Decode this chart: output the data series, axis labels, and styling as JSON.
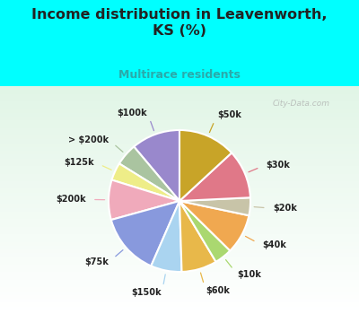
{
  "title": "Income distribution in Leavenworth,\nKS (%)",
  "subtitle": "Multirace residents",
  "title_color": "#222222",
  "subtitle_color": "#2aaaaa",
  "background_cyan": "#00ffff",
  "watermark": "City-Data.com",
  "labels": [
    "$100k",
    "> $200k",
    "$125k",
    "$200k",
    "$75k",
    "$150k",
    "$60k",
    "$10k",
    "$40k",
    "$20k",
    "$30k",
    "$50k"
  ],
  "values": [
    11,
    5,
    4,
    9,
    14,
    7,
    8,
    4,
    9,
    4,
    11,
    13
  ],
  "colors": [
    "#9988cc",
    "#aac4a0",
    "#eeed88",
    "#f0aabb",
    "#8899dd",
    "#aad4f0",
    "#e8b84a",
    "#aad870",
    "#f0a850",
    "#c8c4a8",
    "#e07888",
    "#c8a428"
  ],
  "startangle": 90,
  "plot_bg_colors": [
    "#ffffff",
    "#c8f0d8"
  ],
  "label_color": "#222222",
  "line_colors": [
    "#9988cc",
    "#aac4a0",
    "#eeed88",
    "#f0aabb",
    "#8899dd",
    "#aad4f0",
    "#e8b84a",
    "#aad870",
    "#f0a850",
    "#c8c4a8",
    "#e07888",
    "#c8a428"
  ]
}
